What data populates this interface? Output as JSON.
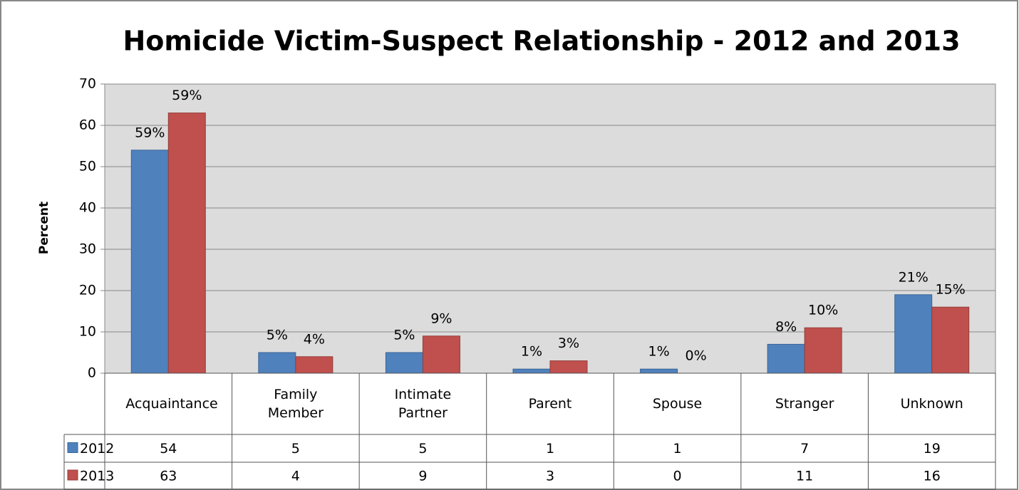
{
  "chart_data": {
    "type": "bar",
    "title": "Homicide Victim-Suspect Relationship - 2012 and 2013",
    "y_label": "Percent",
    "categories": [
      "Acquaintance",
      "Family Member",
      "Intimate Partner",
      "Parent",
      "Spouse",
      "Stranger",
      "Unknown"
    ],
    "series": [
      {
        "name": "2012",
        "color": "#4f81bd",
        "values": [
          54,
          5,
          5,
          1,
          1,
          7,
          19
        ],
        "labels": [
          "59%",
          "5%",
          "5%",
          "1%",
          "1%",
          "8%",
          "21%"
        ]
      },
      {
        "name": "2013",
        "color": "#c0504d",
        "values": [
          63,
          4,
          9,
          3,
          0,
          11,
          16
        ],
        "labels": [
          "59%",
          "4%",
          "9%",
          "3%",
          "0%",
          "10%",
          "15%"
        ]
      }
    ],
    "ylim": [
      0,
      70
    ],
    "yticks": [
      0,
      10,
      20,
      30,
      40,
      50,
      60,
      70
    ],
    "grid": true,
    "data_table": true
  }
}
